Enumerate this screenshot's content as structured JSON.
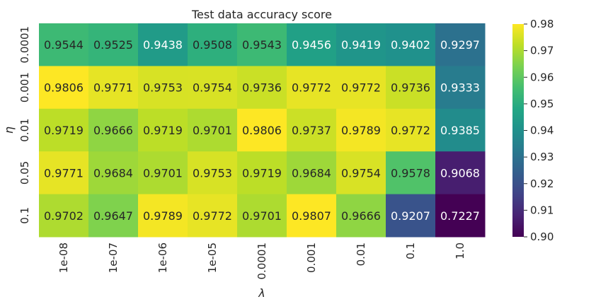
{
  "chart_data": {
    "type": "heatmap",
    "title": "Test data accuracy score",
    "xlabel": "λ",
    "ylabel": "η",
    "x_categories": [
      "1e-08",
      "1e-07",
      "1e-06",
      "1e-05",
      "0.0001",
      "0.001",
      "0.01",
      "0.1",
      "1.0"
    ],
    "y_categories": [
      "0.0001",
      "0.001",
      "0.01",
      "0.05",
      "0.1"
    ],
    "values": [
      [
        0.9544,
        0.9525,
        0.9438,
        0.9508,
        0.9543,
        0.9456,
        0.9419,
        0.9402,
        0.9297
      ],
      [
        0.9806,
        0.9771,
        0.9753,
        0.9754,
        0.9736,
        0.9772,
        0.9772,
        0.9736,
        0.9333
      ],
      [
        0.9719,
        0.9666,
        0.9719,
        0.9701,
        0.9806,
        0.9737,
        0.9789,
        0.9772,
        0.9385
      ],
      [
        0.9771,
        0.9684,
        0.9701,
        0.9753,
        0.9719,
        0.9684,
        0.9754,
        0.9578,
        0.9068
      ],
      [
        0.9702,
        0.9647,
        0.9789,
        0.9772,
        0.9701,
        0.9807,
        0.9666,
        0.9207,
        0.7227
      ]
    ],
    "colorbar": {
      "min": 0.9,
      "max": 0.98,
      "ticks": [
        "0.90",
        "0.91",
        "0.92",
        "0.93",
        "0.94",
        "0.95",
        "0.96",
        "0.97",
        "0.98"
      ],
      "colormap": "viridis"
    },
    "annotated": true,
    "colors": {
      "text_dark": "#262626",
      "text_light": "#ffffff"
    }
  }
}
